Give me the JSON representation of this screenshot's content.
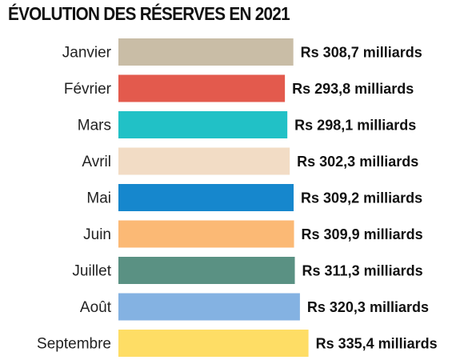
{
  "chart_data": {
    "type": "bar",
    "orientation": "horizontal",
    "title": "ÉVOLUTION DES RÉSERVES EN 2021",
    "xlabel": "",
    "ylabel": "",
    "grid": false,
    "categories": [
      "Janvier",
      "Février",
      "Mars",
      "Avril",
      "Mai",
      "Juin",
      "Juillet",
      "Août",
      "Septembre"
    ],
    "values": [
      308.7,
      293.8,
      298.1,
      302.3,
      309.2,
      309.9,
      311.3,
      320.3,
      335.4
    ],
    "value_labels": [
      "Rs 308,7 milliards",
      "Rs 293,8 milliards",
      "Rs 298,1 milliards",
      "Rs 302,3 milliards",
      "Rs 309,2 milliards",
      "Rs 309,9 milliards",
      "Rs 311,3 milliards",
      "Rs 320,3 milliards",
      "Rs 335,4 milliards"
    ],
    "colors": [
      "#c9bda6",
      "#e35a4d",
      "#21c1c6",
      "#f2dcc5",
      "#1687cd",
      "#fbb975",
      "#5a9183",
      "#84b2e2",
      "#fedd65"
    ]
  }
}
